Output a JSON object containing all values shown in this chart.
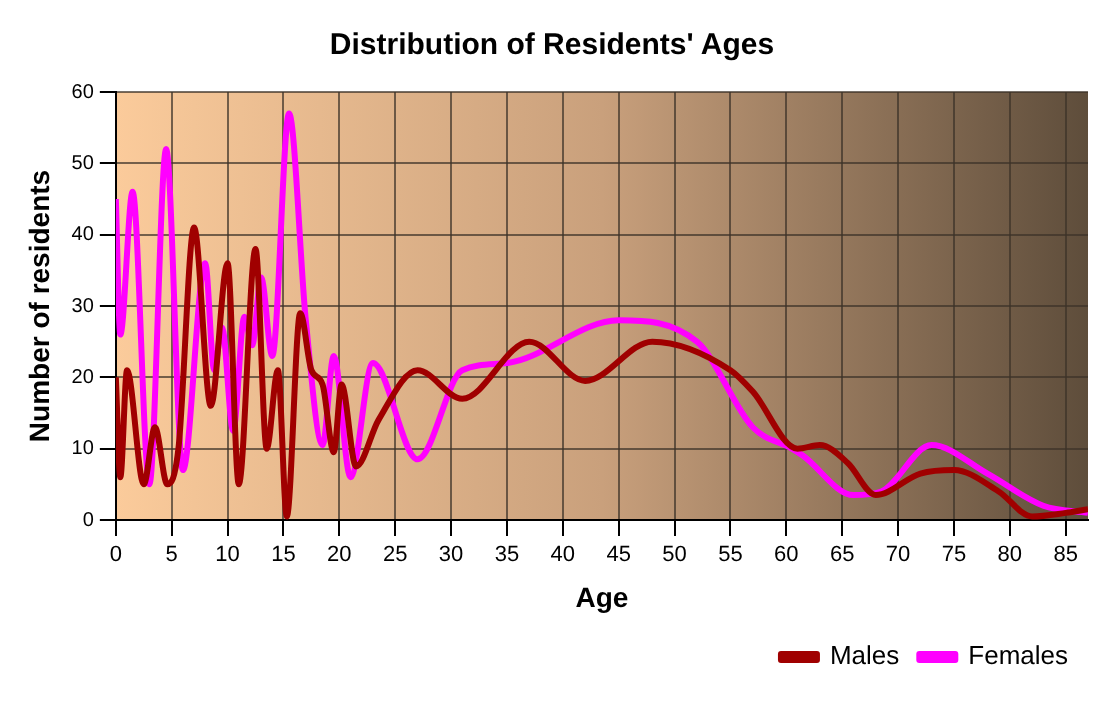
{
  "chart_data": {
    "type": "line",
    "title": "Distribution of Residents' Ages",
    "xlabel": "Age",
    "ylabel": "Number of residents",
    "xlim": [
      0,
      87
    ],
    "xticks": [
      0,
      5,
      10,
      15,
      20,
      25,
      30,
      35,
      40,
      45,
      50,
      55,
      60,
      65,
      70,
      75,
      80,
      85
    ],
    "ylim": [
      0,
      60
    ],
    "yticks": [
      0,
      10,
      20,
      30,
      40,
      50,
      60
    ],
    "grid": true,
    "legend": "bottom right",
    "marker": "none",
    "line_style": "solid",
    "series": [
      {
        "name": "Males",
        "color": "#a00000",
        "x": [
          0,
          0.4,
          1,
          2.5,
          3.5,
          4.6,
          5.6,
          7,
          8.5,
          10,
          11,
          12.5,
          13.5,
          14.5,
          15.3,
          16.5,
          17.5,
          18.5,
          19.5,
          20.2,
          21.5,
          23.5,
          27,
          31,
          37,
          42,
          48,
          55,
          57,
          61,
          63,
          65.5,
          68,
          72,
          75,
          79,
          82,
          85,
          87
        ],
        "values": [
          20,
          6,
          21,
          5,
          13,
          5,
          10,
          41,
          16,
          36,
          5,
          38,
          10,
          21,
          0.5,
          29,
          21,
          19,
          9.5,
          19,
          7.5,
          14,
          21,
          17,
          25,
          19.5,
          25,
          21,
          18,
          10,
          10.5,
          8,
          3.5,
          6.5,
          7,
          4,
          0.5,
          1,
          1.5
        ]
      },
      {
        "name": "Females",
        "color": "#ff00ff",
        "x": [
          0,
          0.4,
          1.5,
          3,
          4.5,
          6,
          8,
          8.8,
          9.5,
          10.5,
          11.5,
          12.2,
          13,
          14,
          15.5,
          17,
          18.5,
          19.5,
          21,
          23,
          27,
          31,
          35,
          45,
          52,
          57,
          60.5,
          61.5,
          66,
          68.5,
          73,
          78,
          83,
          87
        ],
        "values": [
          45,
          26,
          46,
          5,
          52,
          7,
          36,
          21,
          27,
          12.5,
          28.5,
          24.5,
          34,
          23,
          57,
          28,
          10.5,
          23,
          6,
          22,
          8.5,
          21,
          22,
          28,
          25,
          13,
          10,
          9,
          3.5,
          4,
          10.5,
          6.5,
          2,
          1
        ]
      }
    ]
  }
}
